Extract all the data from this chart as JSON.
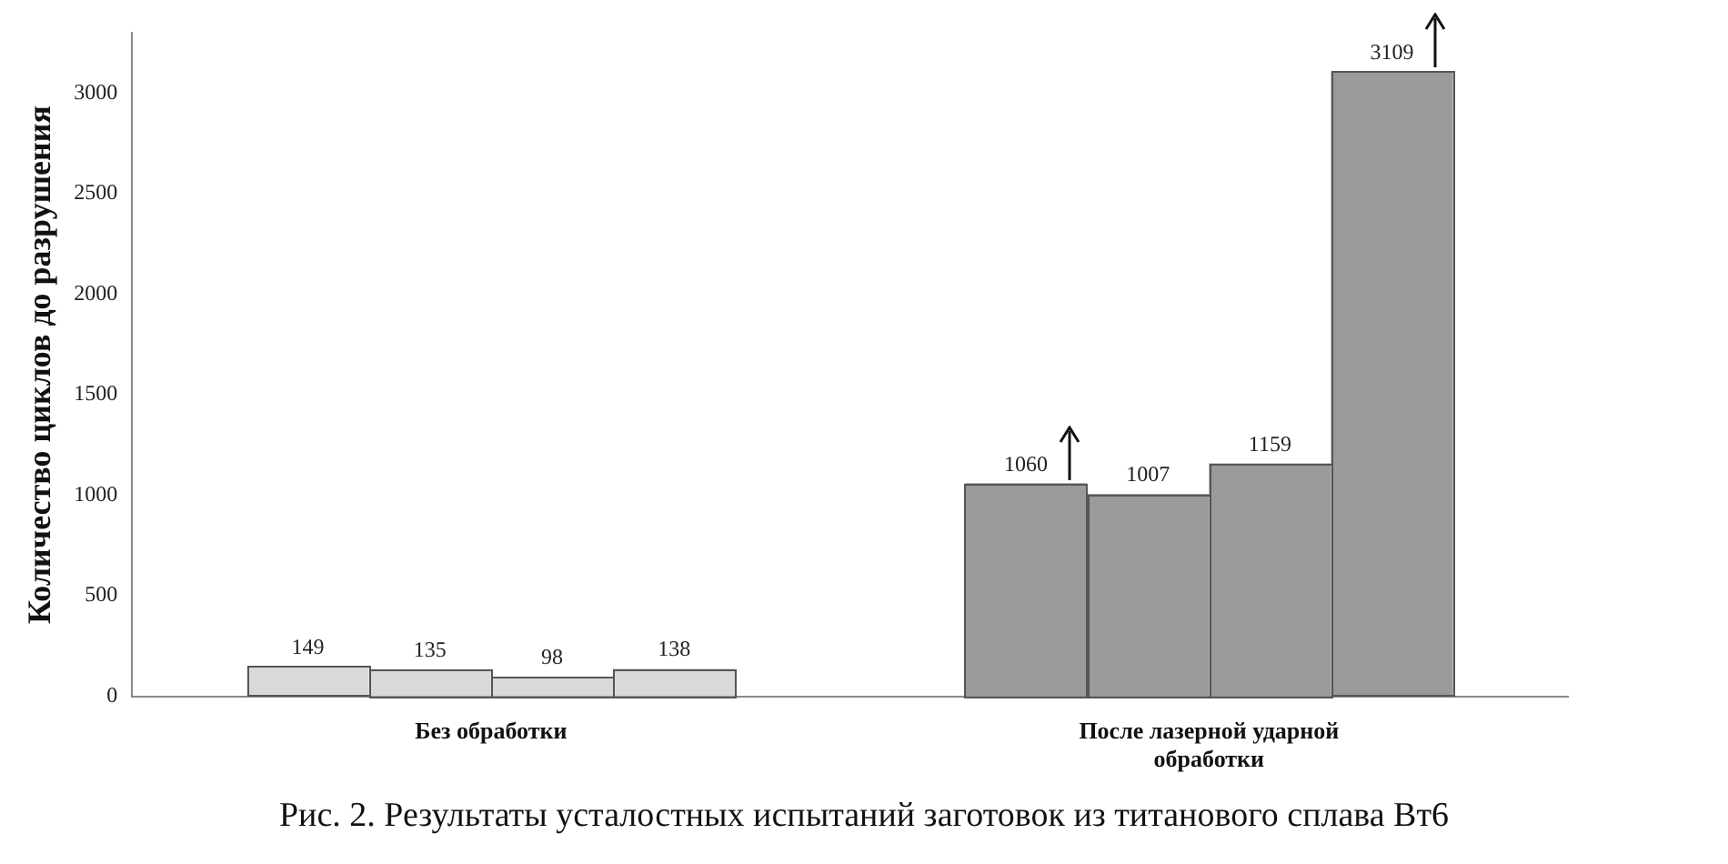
{
  "chart_data": {
    "type": "bar",
    "categories": [
      "Без обработки",
      "После лазерной ударной обработки"
    ],
    "series": [
      {
        "colors": [
          "#d9d9d9",
          "#9a9a9a"
        ],
        "values": [
          149,
          1060
        ]
      },
      {
        "colors": [
          "#d9d9d9",
          "#9a9a9a"
        ],
        "values": [
          135,
          1007
        ]
      },
      {
        "colors": [
          "#d9d9d9",
          "#9a9a9a"
        ],
        "values": [
          98,
          1159
        ]
      },
      {
        "colors": [
          "#d9d9d9",
          "#9a9a9a"
        ],
        "values": [
          138,
          3109
        ]
      }
    ],
    "ylabel": "Количество циклов до разрушения",
    "ylim": [
      0,
      3300
    ],
    "yticks": [
      0,
      500,
      1000,
      1500,
      2000,
      2500,
      3000
    ],
    "data_labels": true,
    "grid": false,
    "legend": false,
    "annotations": [
      "Рис. 2. Результаты усталостных испытаний заготовок из титанового сплава Вт6"
    ]
  }
}
